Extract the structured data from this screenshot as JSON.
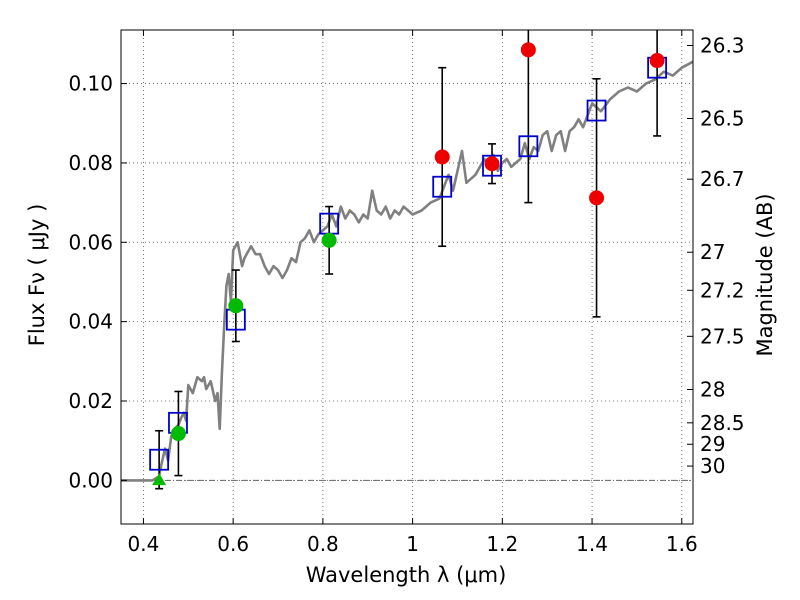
{
  "chart_data": {
    "type": "scatter",
    "title": "",
    "xlabel": "Wavelength  λ (μm)",
    "ylabel_left": "Flux  Fν  ( μJy )",
    "ylabel_right": "Magnitude (AB)",
    "xlim": [
      0.35,
      1.625
    ],
    "ylim": [
      -0.011,
      0.1135
    ],
    "xticks": [
      0.4,
      0.6,
      0.8,
      1.0,
      1.2,
      1.4,
      1.6
    ],
    "xtick_labels": [
      "0.4",
      "0.6",
      "0.8",
      "1",
      "1.2",
      "1.4",
      "1.6"
    ],
    "yticks": [
      0.0,
      0.02,
      0.04,
      0.06,
      0.08,
      0.1
    ],
    "ytick_labels": [
      "0.00",
      "0.02",
      "0.04",
      "0.06",
      "0.08",
      "0.10"
    ],
    "right_axis_ticks": [
      {
        "mag": 26.3,
        "flux": 0.1096,
        "label": "26.3"
      },
      {
        "mag": 26.5,
        "flux": 0.0912,
        "label": "26.5"
      },
      {
        "mag": 26.7,
        "flux": 0.0759,
        "label": "26.7"
      },
      {
        "mag": 27.0,
        "flux": 0.0575,
        "label": "27"
      },
      {
        "mag": 27.2,
        "flux": 0.0479,
        "label": "27.2"
      },
      {
        "mag": 27.5,
        "flux": 0.0363,
        "label": "27.5"
      },
      {
        "mag": 28.0,
        "flux": 0.0229,
        "label": "28"
      },
      {
        "mag": 28.5,
        "flux": 0.0145,
        "label": "28.5"
      },
      {
        "mag": 29.0,
        "flux": 0.0091,
        "label": "29"
      },
      {
        "mag": 30.0,
        "flux": 0.0036,
        "label": "30"
      }
    ],
    "grid": true,
    "series": [
      {
        "kind": "line",
        "color": "#808080",
        "x": [
          0.35,
          0.4,
          0.42,
          0.435,
          0.44,
          0.448,
          0.455,
          0.462,
          0.47,
          0.478,
          0.485,
          0.49,
          0.495,
          0.5,
          0.51,
          0.52,
          0.53,
          0.535,
          0.54,
          0.55,
          0.56,
          0.565,
          0.57,
          0.575,
          0.58,
          0.585,
          0.59,
          0.595,
          0.6,
          0.61,
          0.62,
          0.625,
          0.63,
          0.64,
          0.65,
          0.66,
          0.67,
          0.68,
          0.69,
          0.7,
          0.71,
          0.72,
          0.73,
          0.74,
          0.75,
          0.76,
          0.77,
          0.78,
          0.79,
          0.8,
          0.81,
          0.82,
          0.83,
          0.84,
          0.85,
          0.86,
          0.87,
          0.88,
          0.89,
          0.9,
          0.91,
          0.92,
          0.93,
          0.94,
          0.95,
          0.96,
          0.97,
          0.98,
          0.99,
          1.0,
          1.02,
          1.04,
          1.06,
          1.08,
          1.09,
          1.1,
          1.11,
          1.12,
          1.13,
          1.14,
          1.15,
          1.16,
          1.17,
          1.18,
          1.19,
          1.2,
          1.21,
          1.22,
          1.23,
          1.24,
          1.25,
          1.26,
          1.27,
          1.28,
          1.29,
          1.3,
          1.31,
          1.32,
          1.33,
          1.34,
          1.35,
          1.36,
          1.37,
          1.38,
          1.39,
          1.4,
          1.42,
          1.44,
          1.46,
          1.48,
          1.5,
          1.52,
          1.54,
          1.56,
          1.58,
          1.6,
          1.625
        ],
        "y": [
          0.0,
          0.0,
          0.0,
          0.001,
          0.004,
          0.008,
          0.005,
          0.011,
          0.013,
          0.014,
          0.016,
          0.017,
          0.015,
          0.024,
          0.022,
          0.026,
          0.025,
          0.026,
          0.023,
          0.025,
          0.02,
          0.022,
          0.013,
          0.027,
          0.039,
          0.049,
          0.052,
          0.045,
          0.058,
          0.06,
          0.054,
          0.056,
          0.057,
          0.059,
          0.057,
          0.057,
          0.054,
          0.052,
          0.054,
          0.053,
          0.051,
          0.053,
          0.056,
          0.055,
          0.06,
          0.061,
          0.063,
          0.06,
          0.062,
          0.063,
          0.064,
          0.067,
          0.064,
          0.069,
          0.066,
          0.068,
          0.067,
          0.065,
          0.067,
          0.066,
          0.073,
          0.068,
          0.067,
          0.069,
          0.066,
          0.068,
          0.067,
          0.069,
          0.068,
          0.067,
          0.068,
          0.07,
          0.071,
          0.077,
          0.073,
          0.078,
          0.083,
          0.075,
          0.076,
          0.077,
          0.079,
          0.081,
          0.079,
          0.082,
          0.078,
          0.08,
          0.081,
          0.079,
          0.08,
          0.081,
          0.085,
          0.081,
          0.084,
          0.083,
          0.087,
          0.088,
          0.083,
          0.087,
          0.088,
          0.083,
          0.088,
          0.089,
          0.091,
          0.089,
          0.092,
          0.095,
          0.093,
          0.096,
          0.098,
          0.099,
          0.098,
          0.1,
          0.101,
          0.103,
          0.102,
          0.104,
          0.1055
        ]
      },
      {
        "kind": "open_square",
        "color": "#0000cc",
        "points": [
          {
            "x": 0.435,
            "y": 0.0052
          },
          {
            "x": 0.477,
            "y": 0.0145
          },
          {
            "x": 0.606,
            "y": 0.0405
          },
          {
            "x": 0.814,
            "y": 0.0647
          },
          {
            "x": 1.066,
            "y": 0.074
          },
          {
            "x": 1.177,
            "y": 0.0793
          },
          {
            "x": 1.258,
            "y": 0.0842
          },
          {
            "x": 1.41,
            "y": 0.0932
          },
          {
            "x": 1.545,
            "y": 0.104
          }
        ]
      },
      {
        "kind": "filled_circle",
        "color": "#00bb00",
        "points": [
          {
            "x": 0.478,
            "y": 0.0118,
            "err": 0.0106
          },
          {
            "x": 0.606,
            "y": 0.044,
            "err": 0.009
          },
          {
            "x": 0.814,
            "y": 0.0605,
            "err": 0.0085
          }
        ]
      },
      {
        "kind": "filled_circle",
        "color": "#ee0000",
        "points": [
          {
            "x": 1.066,
            "y": 0.0815,
            "err": 0.0225
          },
          {
            "x": 1.177,
            "y": 0.0798,
            "err": 0.005
          },
          {
            "x": 1.258,
            "y": 0.1085,
            "err": 0.0385
          },
          {
            "x": 1.41,
            "y": 0.0712,
            "err": 0.03
          },
          {
            "x": 1.545,
            "y": 0.1058,
            "err": 0.019
          }
        ]
      },
      {
        "kind": "error_only",
        "color": "#000000",
        "points": [
          {
            "x": 0.435,
            "y": 0.0052,
            "err": 0.0073
          }
        ]
      },
      {
        "kind": "triangle",
        "color": "#00bb00",
        "points": [
          {
            "x": 0.435,
            "y": -0.0002
          }
        ]
      }
    ]
  }
}
